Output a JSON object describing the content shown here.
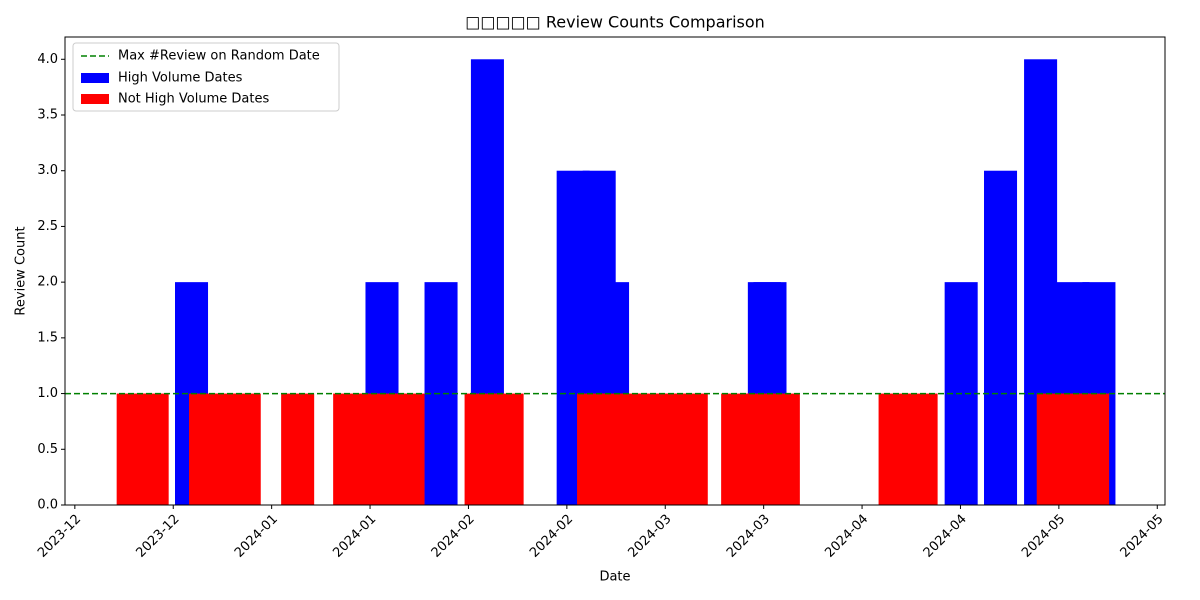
{
  "chart_data": {
    "type": "bar",
    "title": "□□□□□ Review Counts Comparison",
    "xlabel": "Date",
    "ylabel": "Review Count",
    "xlim": [
      -1.4,
      155.1
    ],
    "xticks": [
      {
        "value": 0,
        "label": "2023-12"
      },
      {
        "value": 14,
        "label": "2023-12"
      },
      {
        "value": 28,
        "label": "2024-01"
      },
      {
        "value": 42,
        "label": "2024-01"
      },
      {
        "value": 56,
        "label": "2024-02"
      },
      {
        "value": 70,
        "label": "2024-02"
      },
      {
        "value": 84,
        "label": "2024-03"
      },
      {
        "value": 98,
        "label": "2024-03"
      },
      {
        "value": 112,
        "label": "2024-04"
      },
      {
        "value": 126,
        "label": "2024-04"
      },
      {
        "value": 140,
        "label": "2024-05"
      },
      {
        "value": 154,
        "label": "2024-05"
      }
    ],
    "ylim": [
      0,
      4.2
    ],
    "yticks": [
      {
        "value": 0,
        "label": "0.0"
      },
      {
        "value": 0.5,
        "label": "0.5"
      },
      {
        "value": 1,
        "label": "1.0"
      },
      {
        "value": 1.5,
        "label": "1.5"
      },
      {
        "value": 2,
        "label": "2.0"
      },
      {
        "value": 2.5,
        "label": "2.5"
      },
      {
        "value": 3,
        "label": "3.0"
      },
      {
        "value": 3.5,
        "label": "3.5"
      },
      {
        "value": 4,
        "label": "4.0"
      }
    ],
    "bar_width": 4.7,
    "legend": "upper left",
    "hline": {
      "name": "Max #Review on Random Date",
      "value": 1,
      "color": "#008000"
    },
    "series": [
      {
        "name": "High Volume Dates",
        "color": "#0000ff",
        "x": [
          16.6,
          43.7,
          52.1,
          58.7,
          70.9,
          74.6,
          76.5,
          98.1,
          98.9,
          126.1,
          131.7,
          137.4,
          142.0,
          145.7
        ],
        "values": [
          2,
          2,
          2,
          4,
          3,
          3,
          2,
          2,
          2,
          2,
          3,
          4,
          2,
          2
        ]
      },
      {
        "name": "Not High Volume Dates",
        "color": "#ff0000",
        "x": [
          8.3,
          11.0,
          18.6,
          21.3,
          24.1,
          31.7,
          39.1,
          41.9,
          44.6,
          47.4,
          57.8,
          61.5,
          73.8,
          76.6,
          79.3,
          82.1,
          84.9,
          87.7,
          94.3,
          97.1,
          100.8,
          116.7,
          120.4,
          139.2,
          142.0,
          144.8
        ],
        "values": [
          1,
          1,
          1,
          1,
          1,
          1,
          1,
          1,
          1,
          1,
          1,
          1,
          1,
          1,
          1,
          1,
          1,
          1,
          1,
          1,
          1,
          1,
          1,
          1,
          1,
          1
        ]
      }
    ]
  }
}
